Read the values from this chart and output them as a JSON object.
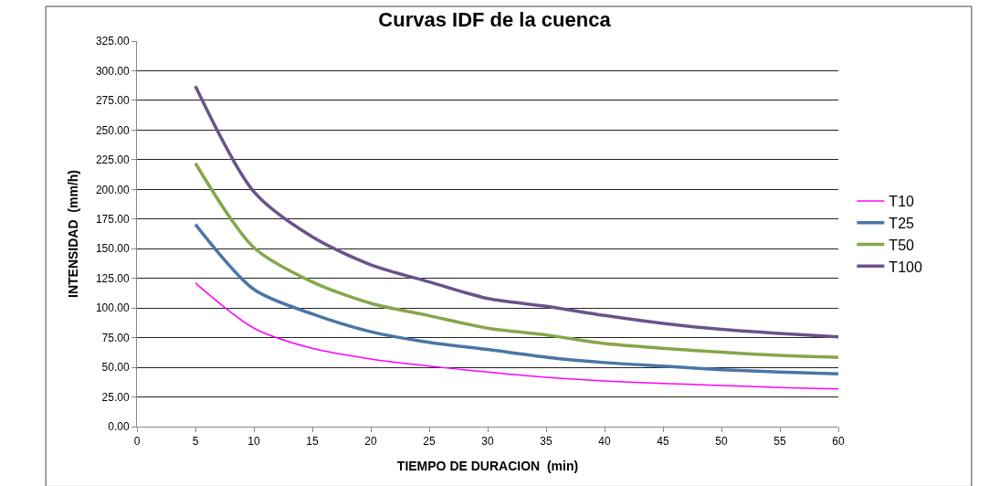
{
  "chart_data": {
    "type": "line",
    "title": "Curvas IDF de la cuenca",
    "xlabel": "TIEMPO DE DURACION  (min)",
    "ylabel": "INTENSIDAD  (mm/h)",
    "x": [
      5,
      10,
      15,
      20,
      25,
      30,
      35,
      40,
      45,
      50,
      55,
      60
    ],
    "series": [
      {
        "name": "T10",
        "color": "#ff00ff",
        "values": [
          121,
          83,
          66,
          57,
          51,
          46,
          41.6,
          38.5,
          36.4,
          34.7,
          33,
          31.8
        ]
      },
      {
        "name": "T25",
        "color": "#4a76a8",
        "values": [
          170.5,
          115.7,
          95,
          80,
          71,
          65,
          58.6,
          54,
          51,
          48,
          46,
          44.5
        ]
      },
      {
        "name": "T50",
        "color": "#86a64a",
        "values": [
          222,
          151,
          122,
          104,
          93.5,
          83,
          77.3,
          70,
          66,
          62.7,
          60,
          58.3
        ]
      },
      {
        "name": "T100",
        "color": "#6b528a",
        "values": [
          287,
          198,
          160,
          136.5,
          122,
          108,
          101.5,
          93.7,
          87,
          82,
          78.6,
          75.7
        ]
      }
    ],
    "xlim": [
      0,
      60
    ],
    "xticks": [
      0,
      5,
      10,
      15,
      20,
      25,
      30,
      35,
      40,
      45,
      50,
      55,
      60
    ],
    "ylim": [
      0,
      325
    ],
    "yticks": [
      {
        "value": 0,
        "label": "0.00"
      },
      {
        "value": 25,
        "label": "25.00"
      },
      {
        "value": 50,
        "label": "50.00"
      },
      {
        "value": 75,
        "label": "75.00"
      },
      {
        "value": 100,
        "label": "100.00"
      },
      {
        "value": 125,
        "label": "125.00"
      },
      {
        "value": 150,
        "label": "150.00"
      },
      {
        "value": 175,
        "label": "175.00"
      },
      {
        "value": 200,
        "label": "200.00"
      },
      {
        "value": 225,
        "label": "225.00"
      },
      {
        "value": 250,
        "label": "250.00"
      },
      {
        "value": 275,
        "label": "275.00"
      },
      {
        "value": 300,
        "label": "300.00"
      },
      {
        "value": 325,
        "label": "325.00"
      }
    ],
    "grid": "y",
    "legend": "right",
    "marker": "none",
    "line_style": "solid"
  }
}
